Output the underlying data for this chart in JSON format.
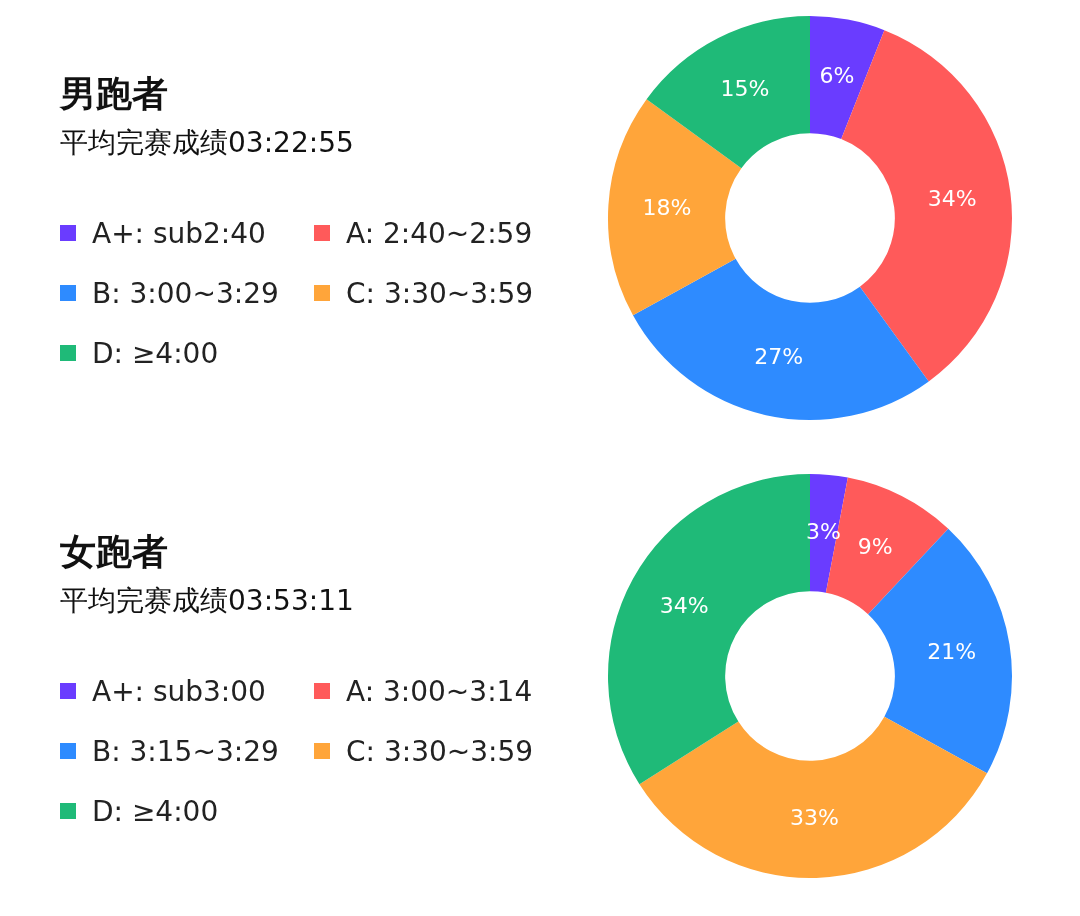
{
  "chart_data": [
    {
      "type": "donut",
      "title": "男跑者",
      "subtitle": "平均完赛成绩03:22:55",
      "categories": [
        "A+: sub2:40",
        "A: 2:40~2:59",
        "B: 3:00~3:29",
        "C: 3:30~3:59",
        "D: ≥4:00"
      ],
      "values": [
        6,
        34,
        27,
        18,
        15
      ],
      "value_labels": [
        "6%",
        "34%",
        "27%",
        "18%",
        "15%"
      ],
      "colors": [
        "#6a3cff",
        "#ff5a5a",
        "#2e8bff",
        "#ffa53a",
        "#1fba78"
      ],
      "legend": "left"
    },
    {
      "type": "donut",
      "title": "女跑者",
      "subtitle": "平均完赛成绩03:53:11",
      "categories": [
        "A+: sub3:00",
        "A: 3:00~3:14",
        "B: 3:15~3:29",
        "C: 3:30~3:59",
        "D: ≥4:00"
      ],
      "values": [
        3,
        9,
        21,
        33,
        34
      ],
      "value_labels": [
        "3%",
        "9%",
        "21%",
        "33%",
        "34%"
      ],
      "colors": [
        "#6a3cff",
        "#ff5a5a",
        "#2e8bff",
        "#ffa53a",
        "#1fba78"
      ],
      "legend": "left"
    }
  ]
}
